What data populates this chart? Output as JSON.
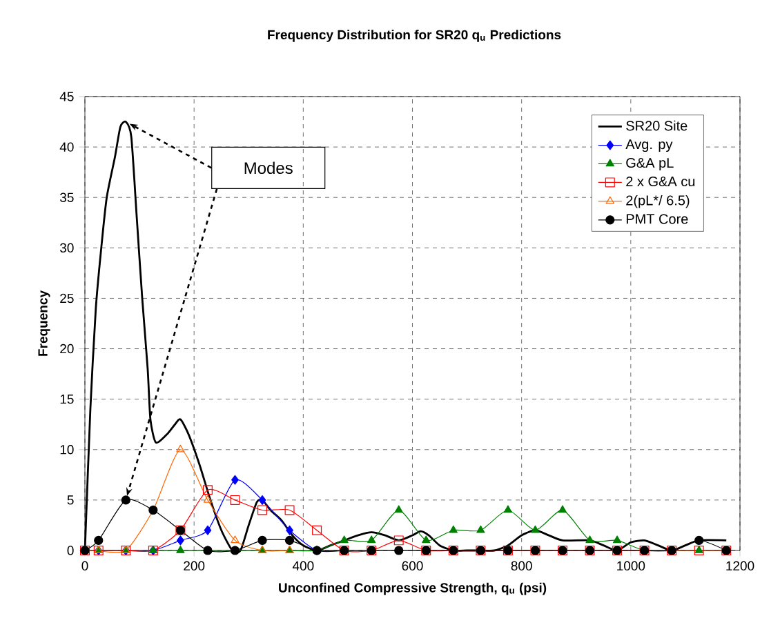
{
  "chart_data": {
    "type": "line",
    "title": "Frequency Distribution for SR20 q$_{u}$ Predictions",
    "xlabel": "Unconfined Compressive Strength, q$_{u}$ (psi)",
    "ylabel": "Frequency",
    "xlim": [
      0,
      1200
    ],
    "ylim": [
      0,
      45
    ],
    "xticks": [
      0,
      200,
      400,
      600,
      800,
      1000,
      1200
    ],
    "yticks": [
      0,
      5,
      10,
      15,
      20,
      25,
      30,
      35,
      40,
      45
    ],
    "grid": true,
    "legend": "top right",
    "annotations": [
      "Modes"
    ],
    "series": [
      {
        "name": "SR20 Site",
        "color": "#000000",
        "marker": "none",
        "x": [
          0,
          10,
          20,
          30,
          40,
          55,
          65,
          75,
          85,
          95,
          105,
          115,
          120,
          130,
          150,
          165,
          175,
          190,
          210,
          230,
          250,
          270,
          285,
          300,
          315,
          325,
          340,
          360,
          380,
          400,
          425,
          450,
          475,
          500,
          525,
          550,
          575,
          600,
          615,
          630,
          650,
          675,
          700,
          725,
          750,
          775,
          800,
          825,
          850,
          875,
          925,
          950,
          975,
          1000,
          1025,
          1050,
          1075,
          1100,
          1125,
          1175
        ],
        "values": [
          0,
          14,
          24,
          30,
          35,
          39,
          42,
          42.5,
          41,
          33,
          25,
          18,
          13,
          10.7,
          11.5,
          12.5,
          13,
          11.5,
          8.5,
          5,
          2,
          0,
          0,
          2.5,
          4.8,
          5,
          4,
          3,
          1.5,
          0.5,
          0,
          0.5,
          1,
          1.5,
          1.8,
          1.5,
          1,
          1.5,
          1.9,
          1.5,
          0.5,
          0,
          0,
          0,
          0,
          0.5,
          1.5,
          2,
          1.5,
          1,
          1,
          0.5,
          0,
          0.8,
          1,
          0.5,
          0,
          0.5,
          1,
          1
        ]
      },
      {
        "name": "Avg. py",
        "color": "#0000ff",
        "marker": "diamond",
        "x": [
          25,
          75,
          125,
          175,
          225,
          275,
          325,
          375,
          425,
          475
        ],
        "values": [
          0,
          0,
          0,
          1,
          2,
          7,
          5,
          2,
          0,
          0
        ]
      },
      {
        "name": "G&A pL",
        "color": "#008000",
        "marker": "triangle",
        "x": [
          0,
          25,
          75,
          125,
          175,
          225,
          275,
          325,
          375,
          425,
          475,
          525,
          575,
          625,
          675,
          725,
          775,
          825,
          875,
          925,
          975,
          1025,
          1075,
          1125,
          1175
        ],
        "values": [
          0,
          0,
          0,
          0,
          0,
          0,
          0,
          0,
          0,
          0,
          1,
          1,
          4,
          1,
          2,
          2,
          4,
          2,
          4,
          1,
          1,
          0,
          0,
          0,
          0
        ]
      },
      {
        "name": "2 x G&A cu",
        "color": "#ff0000",
        "marker": "square",
        "x": [
          0,
          25,
          75,
          125,
          175,
          225,
          275,
          325,
          375,
          425,
          475,
          525,
          575,
          625,
          675,
          725,
          775,
          825,
          875,
          925,
          975,
          1025,
          1075,
          1125,
          1175
        ],
        "values": [
          0,
          0,
          0,
          0,
          2,
          6,
          5,
          4,
          4,
          2,
          0,
          0,
          1,
          0,
          0,
          0,
          0,
          0,
          0,
          0,
          0,
          0,
          0,
          0,
          0
        ]
      },
      {
        "name": "2(pL*/ 6.5)",
        "color": "#ff6600",
        "marker": "triangle",
        "x": [
          25,
          75,
          125,
          175,
          225,
          275,
          325,
          375
        ],
        "values": [
          0,
          0,
          4,
          10,
          5,
          1,
          0,
          0
        ]
      },
      {
        "name": "PMT Core",
        "color": "#000000",
        "marker": "circle",
        "x": [
          0,
          25,
          75,
          125,
          175,
          225,
          275,
          325,
          375,
          425,
          475,
          525,
          575,
          625,
          675,
          725,
          775,
          825,
          875,
          925,
          975,
          1025,
          1075,
          1125,
          1175
        ],
        "values": [
          0,
          1,
          5,
          4,
          2,
          0,
          0,
          1,
          1,
          0,
          0,
          0,
          0,
          0,
          0,
          0,
          0,
          0,
          0,
          0,
          0,
          0,
          0,
          1,
          0
        ]
      }
    ]
  }
}
